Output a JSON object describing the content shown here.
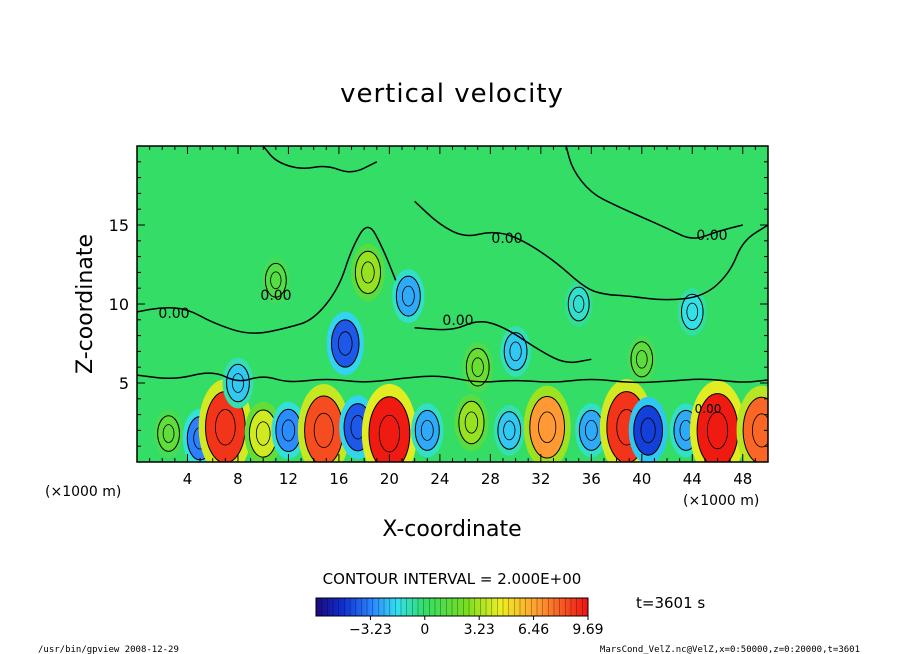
{
  "chart_data": {
    "type": "heatmap",
    "title": "vertical velocity",
    "xlabel": "X-coordinate",
    "ylabel": "Z-coordinate",
    "x_unit_left": "(×1000 m)",
    "x_unit_right": "(×1000 m)",
    "xlim": [
      0,
      50
    ],
    "ylim": [
      0,
      20
    ],
    "x_ticks": [
      4,
      8,
      12,
      16,
      20,
      24,
      28,
      32,
      36,
      40,
      44,
      48
    ],
    "y_ticks": [
      5,
      10,
      15
    ],
    "contour_labels": [
      "0.00",
      "0.00",
      "0.00",
      "0.00",
      "0.00",
      "0.00"
    ],
    "contour_interval_text": "CONTOUR INTERVAL = 2.000E+00",
    "colorbar": {
      "min": -6.46,
      "max": 9.69,
      "tick_values": [
        -3.23,
        0,
        3.23,
        6.46,
        9.69
      ],
      "tick_labels": [
        "−3.23",
        "0",
        "3.23",
        "6.46",
        "9.69"
      ]
    },
    "time_label": "t=3601 s",
    "features": [
      {
        "x": 2.5,
        "z": 1.8,
        "w": 1.6
      },
      {
        "x": 5.0,
        "z": 1.5,
        "w": -3.2
      },
      {
        "x": 7.0,
        "z": 2.2,
        "w": 9.0
      },
      {
        "x": 10.0,
        "z": 1.8,
        "w": 4.0
      },
      {
        "x": 12.0,
        "z": 2.0,
        "w": -3.0
      },
      {
        "x": 14.8,
        "z": 2.0,
        "w": 8.5
      },
      {
        "x": 17.5,
        "z": 2.2,
        "w": -4.0
      },
      {
        "x": 20.0,
        "z": 1.8,
        "w": 9.5
      },
      {
        "x": 23.0,
        "z": 2.0,
        "w": -2.5
      },
      {
        "x": 26.5,
        "z": 2.5,
        "w": 3.0
      },
      {
        "x": 29.5,
        "z": 2.0,
        "w": -2.0
      },
      {
        "x": 32.5,
        "z": 2.2,
        "w": 7.0
      },
      {
        "x": 36.0,
        "z": 2.0,
        "w": -2.5
      },
      {
        "x": 38.8,
        "z": 2.2,
        "w": 9.0
      },
      {
        "x": 40.5,
        "z": 2.0,
        "w": -4.5
      },
      {
        "x": 43.5,
        "z": 2.0,
        "w": -2.5
      },
      {
        "x": 46.0,
        "z": 2.0,
        "w": 9.5
      },
      {
        "x": 49.5,
        "z": 2.0,
        "w": 8.0
      },
      {
        "x": 18.3,
        "z": 12.0,
        "w": 3.0
      },
      {
        "x": 16.5,
        "z": 7.5,
        "w": -4.0
      },
      {
        "x": 21.5,
        "z": 10.5,
        "w": -2.5
      },
      {
        "x": 8.0,
        "z": 5.0,
        "w": -2.0
      },
      {
        "x": 27.0,
        "z": 6.0,
        "w": 2.0
      },
      {
        "x": 30.0,
        "z": 7.0,
        "w": -2.0
      },
      {
        "x": 40.0,
        "z": 6.5,
        "w": 1.5
      },
      {
        "x": 11.0,
        "z": 11.5,
        "w": 1.2
      },
      {
        "x": 44.0,
        "z": 9.5,
        "w": -1.5
      },
      {
        "x": 35.0,
        "z": 10.0,
        "w": -1.2
      }
    ]
  },
  "footer": {
    "left": "/usr/bin/gpview   2008-12-29",
    "right": "MarsCond_VelZ.nc@VelZ,x=0:50000,z=0:20000,t=3601"
  },
  "colors": {
    "background": "#ffffff",
    "frame": "#000000",
    "field_mid": "#33dd66"
  }
}
